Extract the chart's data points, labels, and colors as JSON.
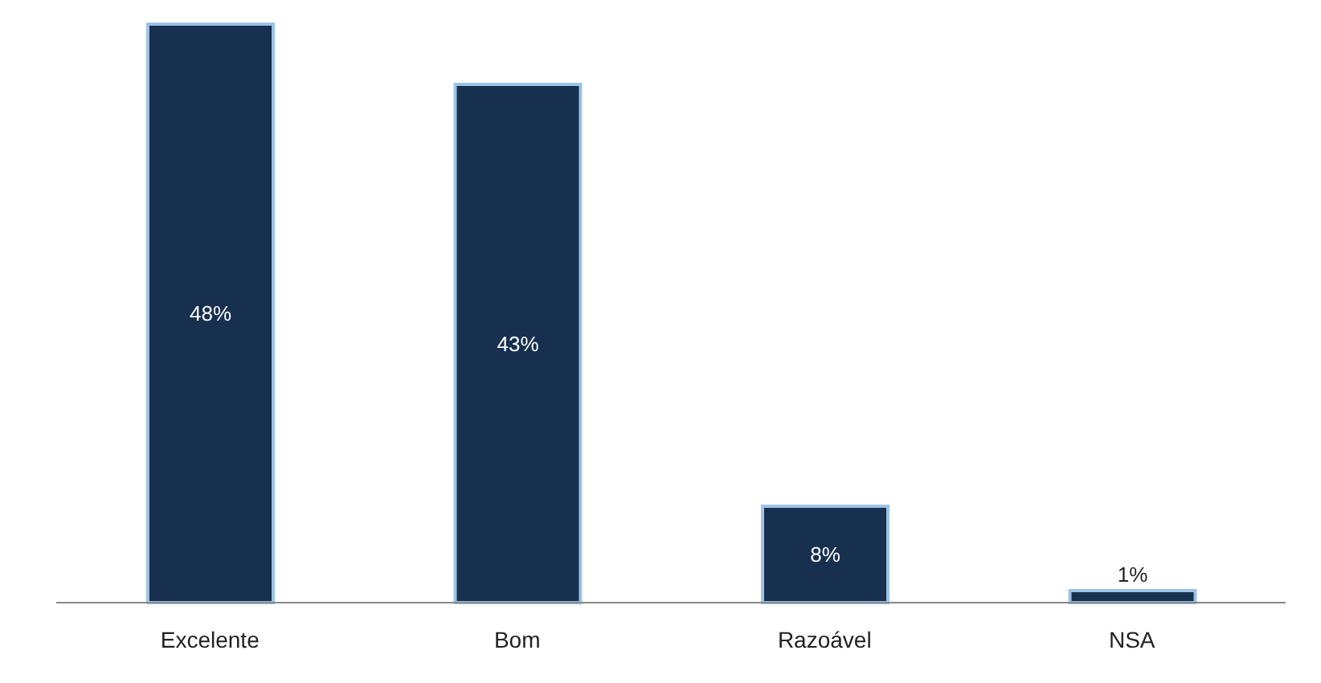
{
  "chart_data": {
    "type": "bar",
    "categories": [
      "Excelente",
      "Bom",
      "Razoável",
      "NSA"
    ],
    "values": [
      48,
      43,
      8,
      1
    ],
    "color": "#17304f",
    "value_labels": [
      "48%",
      "43%",
      "8%",
      "1%"
    ]
  }
}
